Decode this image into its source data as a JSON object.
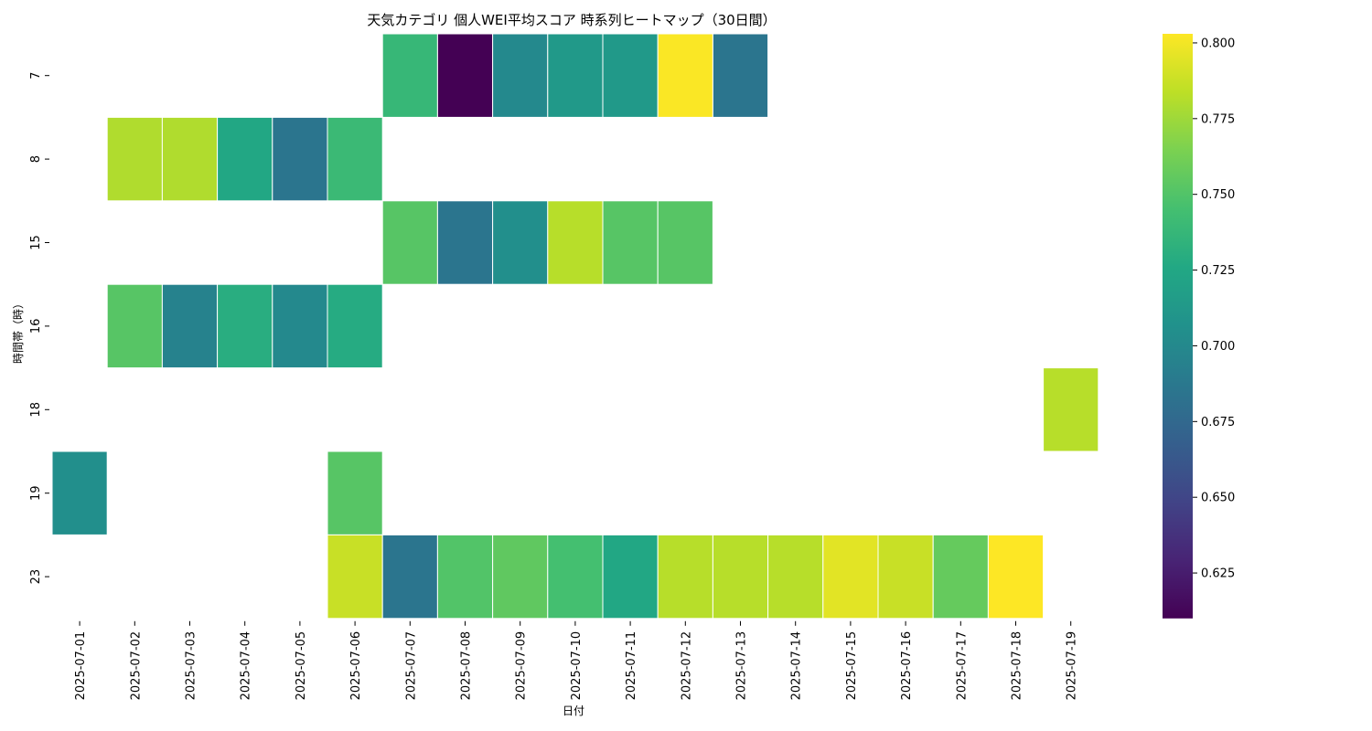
{
  "chart_data": {
    "type": "heatmap",
    "title": "天気カテゴリ 個人WEI平均スコア 時系列ヒートマップ（30日間）",
    "xlabel": "日付",
    "ylabel": "時間帯（時）",
    "x": [
      "2025-07-01",
      "2025-07-02",
      "2025-07-03",
      "2025-07-04",
      "2025-07-05",
      "2025-07-06",
      "2025-07-07",
      "2025-07-08",
      "2025-07-09",
      "2025-07-10",
      "2025-07-11",
      "2025-07-12",
      "2025-07-13",
      "2025-07-14",
      "2025-07-15",
      "2025-07-16",
      "2025-07-17",
      "2025-07-18",
      "2025-07-19"
    ],
    "y": [
      "7",
      "8",
      "15",
      "16",
      "18",
      "19",
      "23"
    ],
    "values": [
      [
        null,
        null,
        null,
        null,
        null,
        null,
        0.738,
        0.61,
        0.7,
        0.713,
        0.713,
        0.802,
        0.685,
        null,
        null,
        null,
        null,
        null,
        null
      ],
      [
        null,
        0.78,
        0.78,
        0.725,
        0.685,
        0.74,
        null,
        null,
        null,
        null,
        null,
        null,
        null,
        null,
        null,
        null,
        null,
        null,
        null
      ],
      [
        null,
        null,
        null,
        null,
        null,
        null,
        0.752,
        0.685,
        0.705,
        0.782,
        0.752,
        0.752,
        null,
        null,
        null,
        null,
        null,
        null,
        null
      ],
      [
        null,
        0.752,
        0.695,
        0.73,
        0.7,
        0.728,
        null,
        null,
        null,
        null,
        null,
        null,
        null,
        null,
        null,
        null,
        null,
        null,
        null
      ],
      [
        null,
        null,
        null,
        null,
        null,
        null,
        null,
        null,
        null,
        null,
        null,
        null,
        null,
        null,
        null,
        null,
        null,
        null,
        0.782
      ],
      [
        0.705,
        null,
        null,
        null,
        null,
        0.752,
        null,
        null,
        null,
        null,
        null,
        null,
        null,
        null,
        null,
        null,
        null,
        null,
        null
      ],
      [
        null,
        null,
        null,
        null,
        null,
        0.787,
        0.685,
        0.75,
        0.755,
        0.745,
        0.725,
        0.782,
        0.782,
        0.782,
        0.795,
        0.787,
        0.757,
        0.803,
        null
      ]
    ],
    "colormap": "viridis",
    "vmin": 0.61,
    "vmax": 0.803,
    "colorbar_ticks": [
      "0.625",
      "0.650",
      "0.675",
      "0.700",
      "0.725",
      "0.750",
      "0.775",
      "0.800"
    ],
    "grid": false,
    "legend": "colorbar-right"
  }
}
